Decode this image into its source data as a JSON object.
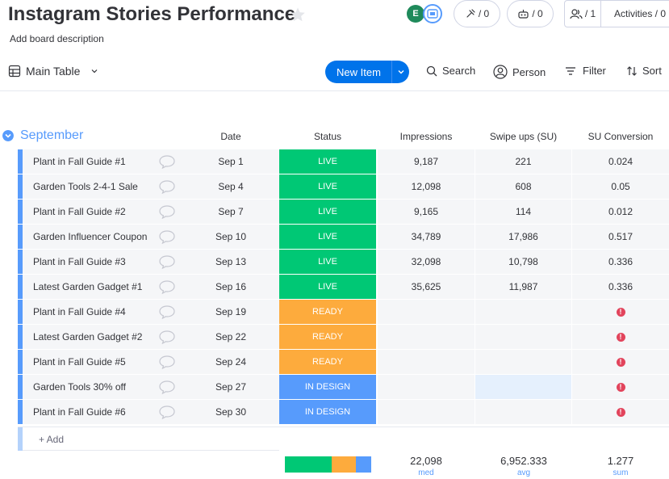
{
  "board": {
    "title": "Instagram Stories Performance",
    "description": "Add board description"
  },
  "header": {
    "avatar_initials": "E",
    "integrations_count": "/ 0",
    "automations_count": "/ 0",
    "members_count": "/ 1",
    "activities_label": "Activities / 0"
  },
  "toolbar": {
    "main_table_label": "Main Table",
    "new_item_label": "New Item",
    "search_label": "Search",
    "person_label": "Person",
    "filter_label": "Filter",
    "sort_label": "Sort"
  },
  "group": {
    "title": "September",
    "color": "#579bfc"
  },
  "columns": {
    "date": "Date",
    "status": "Status",
    "impressions": "Impressions",
    "swipe_ups": "Swipe ups (SU)",
    "su_conversion": "SU Conversion"
  },
  "status_colors": {
    "LIVE": "#00c875",
    "READY": "#fdab3d",
    "IN DESIGN": "#579bfc"
  },
  "rows": [
    {
      "name": "Plant in Fall Guide #1",
      "date": "Sep 1",
      "status": "LIVE",
      "impressions": "9,187",
      "swipe_ups": "221",
      "conversion": "0.024"
    },
    {
      "name": "Garden Tools 2-4-1 Sale",
      "date": "Sep 4",
      "status": "LIVE",
      "impressions": "12,098",
      "swipe_ups": "608",
      "conversion": "0.05"
    },
    {
      "name": "Plant in Fall Guide #2",
      "date": "Sep 7",
      "status": "LIVE",
      "impressions": "9,165",
      "swipe_ups": "114",
      "conversion": "0.012"
    },
    {
      "name": "Garden Influencer Coupon",
      "date": "Sep 10",
      "status": "LIVE",
      "impressions": "34,789",
      "swipe_ups": "17,986",
      "conversion": "0.517"
    },
    {
      "name": "Plant in Fall Guide #3",
      "date": "Sep 13",
      "status": "LIVE",
      "impressions": "32,098",
      "swipe_ups": "10,798",
      "conversion": "0.336"
    },
    {
      "name": "Latest Garden Gadget #1",
      "date": "Sep 16",
      "status": "LIVE",
      "impressions": "35,625",
      "swipe_ups": "11,987",
      "conversion": "0.336"
    },
    {
      "name": "Plant in Fall Guide #4",
      "date": "Sep 19",
      "status": "READY",
      "impressions": "",
      "swipe_ups": "",
      "conversion": ""
    },
    {
      "name": "Latest Garden Gadget #2",
      "date": "Sep 22",
      "status": "READY",
      "impressions": "",
      "swipe_ups": "",
      "conversion": ""
    },
    {
      "name": "Plant in Fall Guide #5",
      "date": "Sep 24",
      "status": "READY",
      "impressions": "",
      "swipe_ups": "",
      "conversion": ""
    },
    {
      "name": "Garden Tools 30% off",
      "date": "Sep 27",
      "status": "IN DESIGN",
      "impressions": "",
      "swipe_ups": "",
      "conversion": ""
    },
    {
      "name": "Plant in Fall Guide #6",
      "date": "Sep 30",
      "status": "IN DESIGN",
      "impressions": "",
      "swipe_ups": "",
      "conversion": ""
    }
  ],
  "add_item_label": "+ Add",
  "summary": {
    "status_distribution": [
      {
        "status": "LIVE",
        "fraction": 0.545
      },
      {
        "status": "READY",
        "fraction": 0.273
      },
      {
        "status": "IN DESIGN",
        "fraction": 0.182
      }
    ],
    "impressions": {
      "value": "22,098",
      "label": "med"
    },
    "swipe_ups": {
      "value": "6,952.333",
      "label": "avg"
    },
    "su_conversion": {
      "value": "1.277",
      "label": "sum"
    }
  }
}
